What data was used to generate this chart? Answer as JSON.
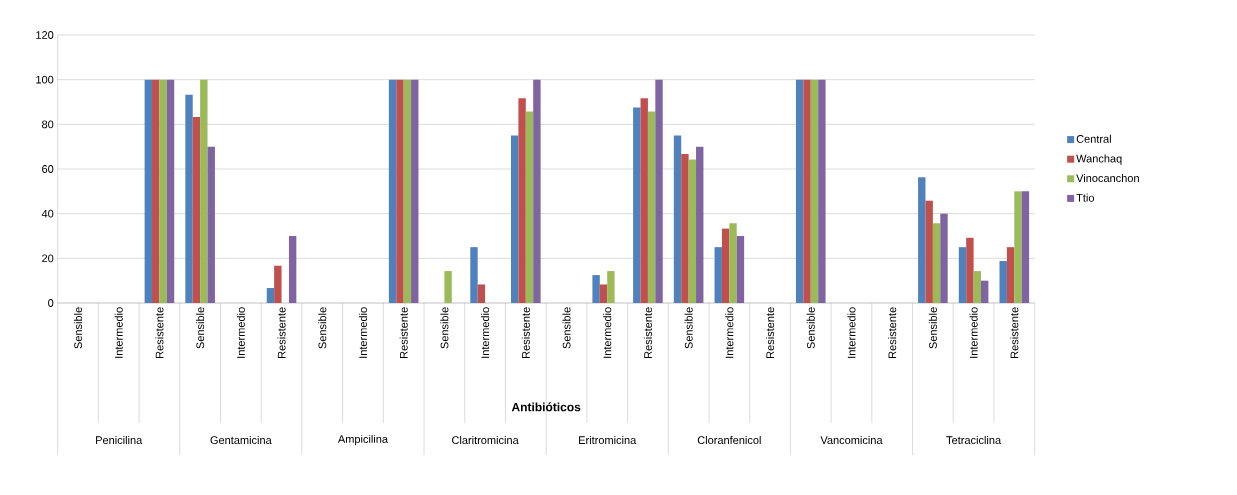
{
  "chart_data": {
    "type": "bar",
    "xlabel": "Antibióticos",
    "categories": [
      "Sensible",
      "Intermedio",
      "Resistente",
      "Sensible",
      "Intermedio",
      "Resistente",
      "Sensible",
      "Intermedio",
      "Resistente",
      "Sensible",
      "Intermedio",
      "Resistente",
      "Sensible",
      "Intermedio",
      "Resistente",
      "Sensible",
      "Intermedio",
      "Resistente",
      "Sensible",
      "Intermedio",
      "Resistente",
      "Sensible",
      "Intermedio",
      "Resistente"
    ],
    "annotations": [
      "Penicilina",
      "Gentamicina",
      "Ampicilina",
      "Claritromicina",
      "Eritromicina",
      "Cloranfenicol",
      "Vancomicina",
      "Tetraciclina"
    ],
    "series": [
      {
        "name": "Central",
        "color": "#4f81bd",
        "values": [
          0,
          0,
          100,
          93.3,
          0,
          6.7,
          0,
          0,
          100,
          0,
          25,
          75,
          0,
          12.5,
          87.5,
          75,
          25,
          0,
          100,
          0,
          0,
          56.3,
          25,
          18.8
        ]
      },
      {
        "name": "Wanchaq",
        "color": "#c0504d",
        "values": [
          0,
          0,
          100,
          83.3,
          0,
          16.7,
          0,
          0,
          100,
          0,
          8.3,
          91.7,
          0,
          8.3,
          91.7,
          66.7,
          33.3,
          0,
          100,
          0,
          0,
          45.8,
          29.2,
          25
        ]
      },
      {
        "name": "Vinocanchon",
        "color": "#9bbb59",
        "values": [
          0,
          0,
          100,
          100,
          0,
          0,
          0,
          0,
          100,
          14.3,
          0,
          85.7,
          0,
          14.3,
          85.7,
          64.3,
          35.7,
          0,
          100,
          0,
          0,
          35.7,
          14.3,
          50
        ]
      },
      {
        "name": "Ttio",
        "color": "#8064a2",
        "values": [
          0,
          0,
          100,
          70,
          0,
          30,
          0,
          0,
          100,
          0,
          0,
          100,
          0,
          0,
          100,
          70,
          30,
          0,
          100,
          0,
          0,
          40,
          10,
          50
        ]
      }
    ],
    "ylim": [
      0,
      120
    ],
    "yticks": [
      0,
      20,
      40,
      60,
      80,
      100,
      120
    ],
    "grid": "y",
    "legend": "right"
  }
}
